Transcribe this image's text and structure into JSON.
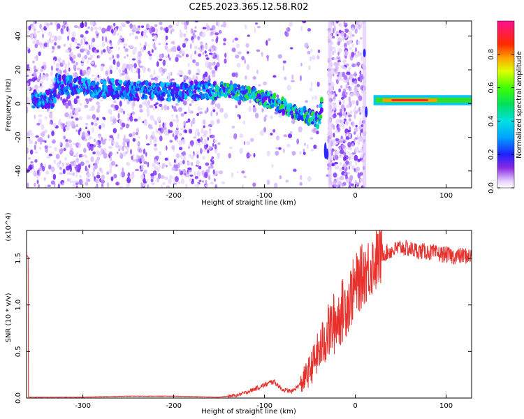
{
  "figure_title": "C2E5.2023.365.12.58.R02",
  "chart_data": [
    {
      "type": "heatmap",
      "title": "C2E5.2023.365.12.58.R02",
      "xlabel": "Height of straight line (km)",
      "ylabel": "Frequency (Hz)",
      "xlim": [
        -362,
        128
      ],
      "ylim": [
        -50,
        49
      ],
      "x_ticks": [
        -300,
        -200,
        -100,
        0,
        100
      ],
      "y_ticks": [
        40,
        20,
        0,
        -20,
        -40
      ],
      "colorbar": {
        "label": "Normalized spectral amplitude",
        "range": [
          0.0,
          1.0
        ],
        "ticks": [
          0.0,
          0.2,
          0.4,
          0.6,
          0.8
        ],
        "colormap": "rainbow (violet-blue-cyan-green-yellow-red-pink)"
      },
      "ridge": {
        "description": "dominant frequency trace",
        "points": [
          {
            "x": -330,
            "y": 12
          },
          {
            "x": -290,
            "y": 9
          },
          {
            "x": -250,
            "y": 8
          },
          {
            "x": -200,
            "y": 7
          },
          {
            "x": -160,
            "y": 8
          },
          {
            "x": -130,
            "y": 7
          },
          {
            "x": -110,
            "y": 5
          },
          {
            "x": -90,
            "y": 1
          },
          {
            "x": -70,
            "y": -4
          },
          {
            "x": -50,
            "y": -8
          },
          {
            "x": -40,
            "y": -10
          },
          {
            "x": -35,
            "y": 7
          },
          {
            "x": 10,
            "y": 30
          },
          {
            "x": 15,
            "y": 3
          },
          {
            "x": 40,
            "y": 2
          },
          {
            "x": 60,
            "y": 2
          },
          {
            "x": 100,
            "y": 2
          },
          {
            "x": 128,
            "y": 3
          }
        ],
        "strong_segment_x": [
          20,
          128
        ],
        "strong_segment_peak_x": [
          40,
          80
        ]
      }
    },
    {
      "type": "line",
      "xlabel": "Height of straight line (km)",
      "ylabel": "SNR (10 * v/v)",
      "y_multiplier": "(x10^4)",
      "xlim": [
        -362,
        128
      ],
      "ylim": [
        0,
        1.8
      ],
      "x_ticks": [
        -300,
        -200,
        -100,
        0,
        100
      ],
      "y_ticks": [
        0.0,
        0.5,
        1.0,
        1.5
      ],
      "series": [
        {
          "color": "#e8302c",
          "x": [
            -360,
            -300,
            -250,
            -200,
            -150,
            -130,
            -120,
            -110,
            -100,
            -90,
            -80,
            -70,
            -60,
            -50,
            -40,
            -30,
            -20,
            -10,
            0,
            10,
            20,
            30,
            40,
            50,
            60,
            70,
            80,
            90,
            100,
            110,
            120,
            128
          ],
          "values": [
            0.01,
            0.01,
            0.02,
            0.02,
            0.01,
            0.03,
            0.06,
            0.1,
            0.14,
            0.18,
            0.09,
            0.07,
            0.15,
            0.3,
            0.5,
            0.7,
            0.85,
            1.0,
            1.2,
            1.35,
            1.45,
            1.55,
            1.58,
            1.62,
            1.6,
            1.58,
            1.57,
            1.55,
            1.54,
            1.52,
            1.53,
            1.52
          ]
        }
      ]
    }
  ]
}
